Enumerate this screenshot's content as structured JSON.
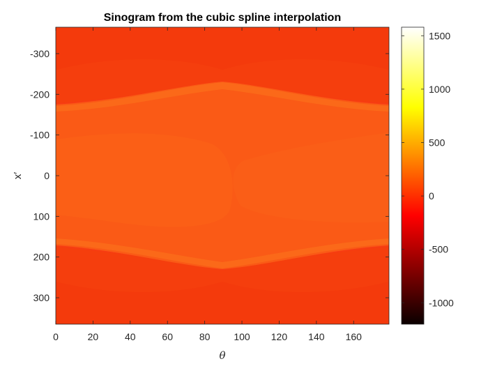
{
  "chart_data": {
    "type": "heatmap",
    "title": "Sinogram from the cubic spline interpolation",
    "xlabel": "θ",
    "ylabel": "x′",
    "xlim": [
      0,
      179
    ],
    "ylim": [
      -365,
      365
    ],
    "y_reversed": true,
    "x_ticks": [
      0,
      20,
      40,
      60,
      80,
      100,
      120,
      140,
      160
    ],
    "y_ticks": [
      -300,
      -200,
      -100,
      0,
      100,
      200,
      300
    ],
    "colorbar": {
      "colormap": "hot",
      "range": [
        -1200,
        1580
      ],
      "ticks": [
        -1000,
        -500,
        0,
        500,
        1000,
        1500
      ]
    },
    "grid": false,
    "legend": "none"
  }
}
